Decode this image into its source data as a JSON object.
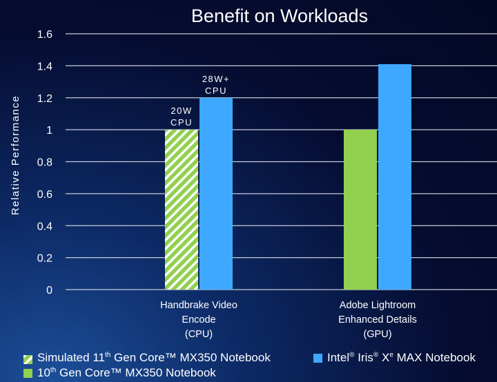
{
  "chart_data": {
    "type": "bar",
    "title": "Benefit on Workloads",
    "xlabel": "",
    "ylabel": "Relative Performance",
    "ylim": [
      0,
      1.6
    ],
    "yticks": [
      "0",
      "0.2",
      "0.4",
      "0.6",
      "0.8",
      "1",
      "1.2",
      "1.4",
      "1.6"
    ],
    "grid": true,
    "categories": [
      [
        "Handbrake Video",
        "Encode",
        "(CPU)"
      ],
      [
        "Adobe Lightroom",
        "Enhanced Details",
        "(GPU)"
      ]
    ],
    "series": [
      {
        "name": "Simulated 11th Gen Core™ MX350 Notebook / 10th Gen Core™ MX350 Notebook",
        "values": [
          1.0,
          1.0
        ],
        "colors": [
          "#92d050",
          "#92d050"
        ],
        "hatched": [
          true,
          false
        ]
      },
      {
        "name": "Intel® Iris® Xe MAX Notebook",
        "values": [
          1.2,
          1.41
        ],
        "colors": [
          "#3ea8ff",
          "#3ea8ff"
        ]
      }
    ],
    "annotations": [
      {
        "lines": [
          "20W",
          "CPU"
        ],
        "category": 0,
        "series": 0
      },
      {
        "lines": [
          "28W+",
          "CPU"
        ],
        "category": 0,
        "series": 1
      }
    ],
    "legend_placement": "bottom"
  },
  "legend": {
    "simulated": {
      "pre": "Simulated 11",
      "sup": "th",
      "post": " Gen Core™ MX350 Notebook",
      "color": "#92d050"
    },
    "tenth": {
      "pre": "10",
      "sup": "th",
      "post": " Gen Core™  MX350 Notebook",
      "color": "#92d050"
    },
    "intel": {
      "pre": "Intel",
      "sup1": "®",
      "mid": " Iris",
      "sup2": "®",
      "mid2": " X",
      "sup3": "e",
      "post": " MAX Notebook",
      "color": "#3ea8ff"
    }
  }
}
